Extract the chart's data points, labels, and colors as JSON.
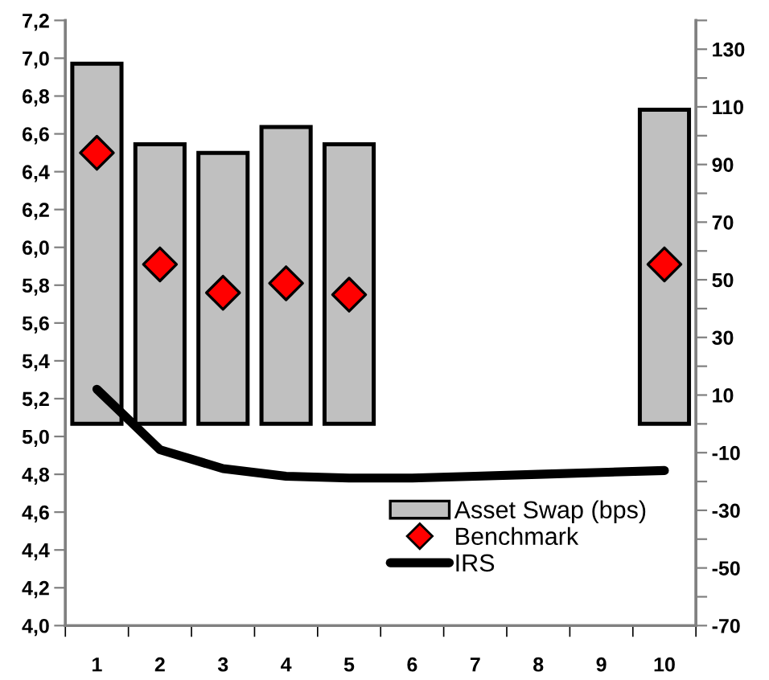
{
  "chart_data": {
    "type": "bar",
    "categories": [
      "1",
      "2",
      "3",
      "4",
      "5",
      "6",
      "7",
      "8",
      "9",
      "10"
    ],
    "series": [
      {
        "name": "Asset Swap (bps)",
        "axis": "y2",
        "color": "#c0c0c0",
        "values": [
          125,
          97,
          94,
          103,
          97,
          null,
          null,
          null,
          null,
          109
        ]
      },
      {
        "name": "Benchmark",
        "type": "scatter",
        "marker": "diamond",
        "color": "#ff0000",
        "values": [
          6.5,
          5.91,
          5.76,
          5.81,
          5.75,
          null,
          null,
          null,
          null,
          5.91
        ]
      },
      {
        "name": "IRS",
        "type": "line",
        "color": "#000000",
        "values": [
          5.25,
          4.93,
          4.83,
          4.79,
          4.78,
          4.78,
          4.79,
          4.8,
          4.81,
          4.82
        ]
      }
    ],
    "ylim": [
      4.0,
      7.2
    ],
    "yticks": [
      {
        "value": 4.0,
        "label": "4,0"
      },
      {
        "value": 4.2,
        "label": "4,2"
      },
      {
        "value": 4.4,
        "label": "4,4"
      },
      {
        "value": 4.6,
        "label": "4,6"
      },
      {
        "value": 4.8,
        "label": "4,8"
      },
      {
        "value": 5.0,
        "label": "5,0"
      },
      {
        "value": 5.2,
        "label": "5,2"
      },
      {
        "value": 5.4,
        "label": "5,4"
      },
      {
        "value": 5.6,
        "label": "5,6"
      },
      {
        "value": 5.8,
        "label": "5,8"
      },
      {
        "value": 6.0,
        "label": "6,0"
      },
      {
        "value": 6.2,
        "label": "6,2"
      },
      {
        "value": 6.4,
        "label": "6,4"
      },
      {
        "value": 6.6,
        "label": "6,6"
      },
      {
        "value": 6.8,
        "label": "6,8"
      },
      {
        "value": 7.0,
        "label": "7,0"
      },
      {
        "value": 7.2,
        "label": "7,2"
      }
    ],
    "y2lim": [
      -70,
      140
    ],
    "y2ticks": [
      -70,
      {
        "value": -60,
        "label": null
      },
      -50,
      {
        "value": -40,
        "label": null
      },
      -30,
      {
        "value": -20,
        "label": null
      },
      -10,
      {
        "value": 0,
        "label": null
      },
      10,
      {
        "value": 20,
        "label": null
      },
      30,
      {
        "value": 40,
        "label": null
      },
      50,
      {
        "value": 60,
        "label": null
      },
      70,
      {
        "value": 80,
        "label": null
      },
      90,
      {
        "value": 100,
        "label": null
      },
      110,
      {
        "value": 120,
        "label": null
      },
      130,
      {
        "value": 140,
        "label": null
      }
    ],
    "grid": false,
    "legend": "bottom right"
  }
}
